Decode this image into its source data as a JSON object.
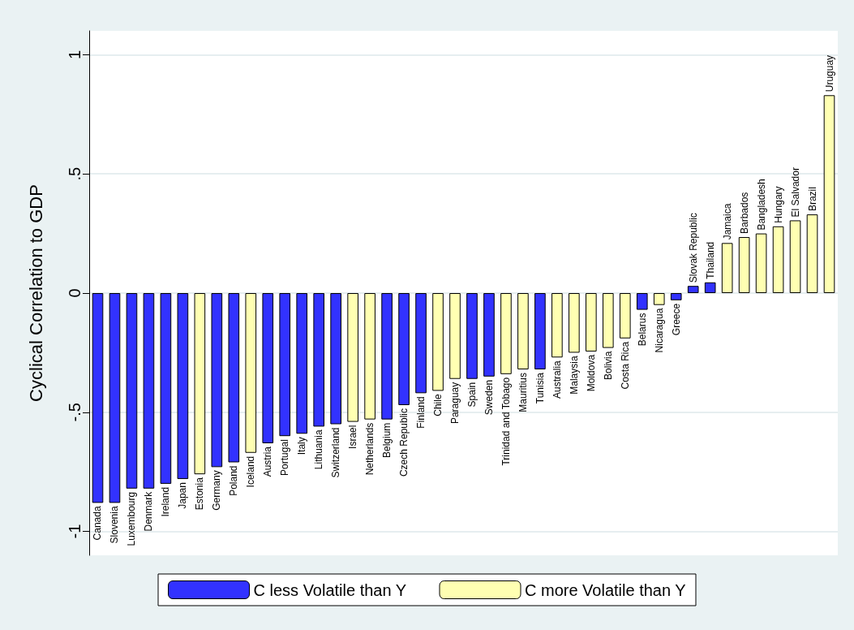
{
  "chart_data": {
    "type": "bar",
    "ylabel": "Cyclical Correlation to GDP",
    "categories": [
      "Canada",
      "Slovenia",
      "Luxembourg",
      "Denmark",
      "Ireland",
      "Japan",
      "Estonia",
      "Germany",
      "Poland",
      "Iceland",
      "Austria",
      "Portugal",
      "Italy",
      "Lithuania",
      "Switzerland",
      "Israel",
      "Netherlands",
      "Belgium",
      "Czech Republic",
      "Finland",
      "Chile",
      "Paraguay",
      "Spain",
      "Sweden",
      "Trinidad and Tobago",
      "Mauritius",
      "Tunisia",
      "Australia",
      "Malaysia",
      "Moldova",
      "Bolivia",
      "Costa Rica",
      "Belarus",
      "Nicaragua",
      "Greece",
      "Slovak Republic",
      "Thailand",
      "Jamaica",
      "Barbados",
      "Bangladesh",
      "Hungary",
      "El Salvador",
      "Brazil",
      "Uruguay"
    ],
    "series": [
      {
        "name": "C less Volatile than Y",
        "color": "#3232ff",
        "values": [
          -0.88,
          -0.88,
          -0.82,
          -0.82,
          -0.8,
          -0.78,
          null,
          -0.73,
          -0.71,
          null,
          -0.63,
          -0.6,
          -0.59,
          -0.56,
          -0.55,
          null,
          null,
          -0.53,
          -0.47,
          -0.42,
          null,
          null,
          -0.36,
          -0.35,
          null,
          null,
          -0.32,
          null,
          null,
          null,
          null,
          null,
          -0.07,
          null,
          -0.03,
          0.03,
          0.045,
          null,
          null,
          null,
          null,
          null,
          null,
          null
        ]
      },
      {
        "name": "C more Volatile than Y",
        "color": "#ffffb2",
        "values": [
          null,
          null,
          null,
          null,
          null,
          null,
          -0.76,
          null,
          null,
          -0.67,
          null,
          null,
          null,
          null,
          null,
          -0.54,
          -0.53,
          null,
          null,
          null,
          -0.41,
          -0.36,
          null,
          null,
          -0.34,
          -0.32,
          null,
          -0.27,
          -0.25,
          -0.245,
          -0.23,
          -0.19,
          null,
          -0.05,
          null,
          null,
          null,
          0.21,
          0.235,
          0.25,
          0.28,
          0.305,
          0.33,
          0.83
        ]
      }
    ],
    "ylim": [
      -1.1,
      1.1
    ],
    "yticks": [
      {
        "value": -1,
        "label": "-1"
      },
      {
        "value": -0.5,
        "label": "-.5"
      },
      0,
      {
        "value": 0.5,
        "label": ".5"
      },
      1
    ],
    "grid": "y",
    "legend": "bottom",
    "tick_labels": "y"
  }
}
